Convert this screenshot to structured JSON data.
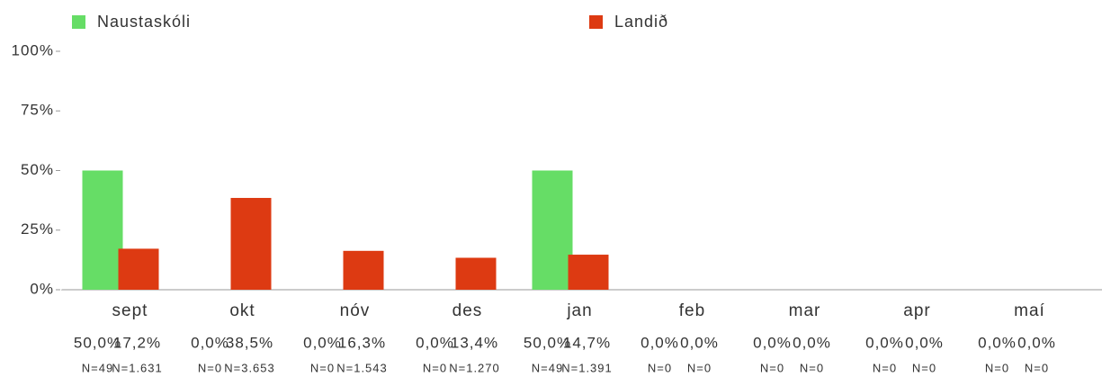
{
  "chart_data": {
    "type": "bar",
    "categories": [
      "sept",
      "okt",
      "nóv",
      "des",
      "jan",
      "feb",
      "mar",
      "apr",
      "maí"
    ],
    "series": [
      {
        "name": "Naustaskóli",
        "color": "#66dd66",
        "values": [
          50,
          0,
          0,
          0,
          50,
          0,
          0,
          0,
          0
        ],
        "value_labels": [
          "50,0%",
          "0,0%",
          "0,0%",
          "0,0%",
          "50,0%",
          "0,0%",
          "0,0%",
          "0,0%",
          "0,0%"
        ],
        "n_labels": [
          "N=49",
          "N=0",
          "N=0",
          "N=0",
          "N=49",
          "N=0",
          "N=0",
          "N=0",
          "N=0"
        ]
      },
      {
        "name": "Landið",
        "color": "#dd3a12",
        "values": [
          17.2,
          38.5,
          16.3,
          13.4,
          14.7,
          0,
          0,
          0,
          0
        ],
        "value_labels": [
          "17,2%",
          "38,5%",
          "16,3%",
          "13,4%",
          "14,7%",
          "0,0%",
          "0,0%",
          "0,0%",
          "0,0%"
        ],
        "n_labels": [
          "N=1.631",
          "N=3.653",
          "N=1.543",
          "N=1.270",
          "N=1.391",
          "N=0",
          "N=0",
          "N=0",
          "N=0"
        ]
      }
    ],
    "ylim": [
      0,
      100
    ],
    "yticks": [
      {
        "value": 0,
        "label": "0%"
      },
      {
        "value": 25,
        "label": "25%"
      },
      {
        "value": 50,
        "label": "50%"
      },
      {
        "value": 75,
        "label": "75%"
      },
      {
        "value": 100,
        "label": "100%"
      }
    ]
  }
}
